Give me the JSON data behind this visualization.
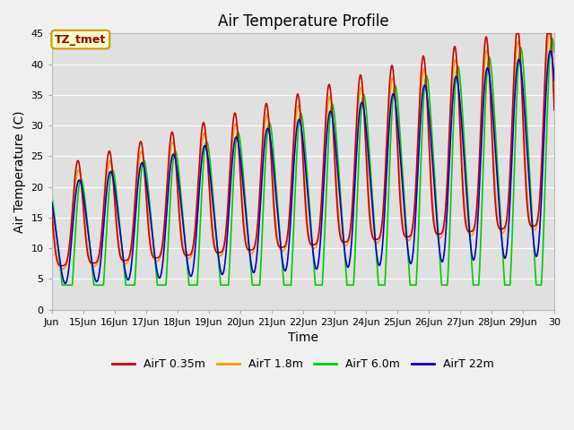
{
  "title": "Air Temperature Profile",
  "xlabel": "Time",
  "ylabel": "Air Temperature (C)",
  "annotation": "TZ_tmet",
  "ylim": [
    0,
    45
  ],
  "x_tick_positions": [
    14,
    15,
    16,
    17,
    18,
    19,
    20,
    21,
    22,
    23,
    24,
    25,
    26,
    27,
    28,
    29,
    30
  ],
  "x_tick_labels": [
    "Jun",
    "15Jun",
    "16Jun",
    "17Jun",
    "18Jun",
    "19Jun",
    "20Jun",
    "21Jun",
    "22Jun",
    "23Jun",
    "24Jun",
    "25Jun",
    "26Jun",
    "27Jun",
    "28Jun",
    "29Jun",
    "30"
  ],
  "y_ticks": [
    0,
    5,
    10,
    15,
    20,
    25,
    30,
    35,
    40,
    45
  ],
  "series_colors": {
    "AirT 0.35m": "#cc0000",
    "AirT 1.8m": "#ff9900",
    "AirT 6.0m": "#00cc00",
    "AirT 22m": "#0000cc"
  },
  "fig_bg": "#f0f0f0",
  "plot_bg": "#e0e0e0",
  "grid_color": "#ffffff",
  "title_fontsize": 12,
  "axis_label_fontsize": 10,
  "tick_fontsize": 8,
  "legend_fontsize": 9,
  "linewidth": 1.2
}
